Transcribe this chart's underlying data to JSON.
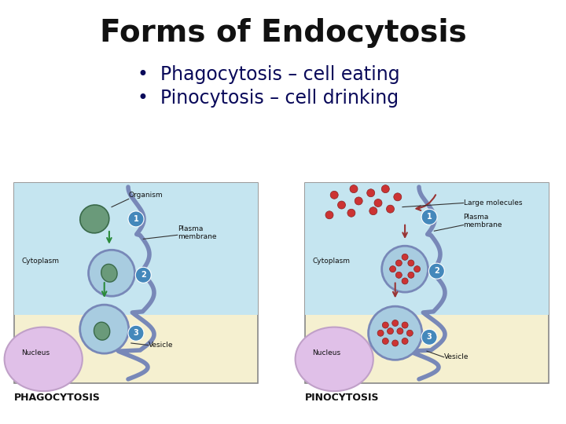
{
  "title": "Forms of Endocytosis",
  "title_color": "#111111",
  "title_fontsize": 28,
  "title_fontweight": "bold",
  "bullet_color": "#0a0a5a",
  "bullet_fontsize": 17,
  "bullet1": "•  Phagocytosis – cell eating",
  "bullet2": "•  Pinocytosis – cell drinking",
  "label1": "PHAGOCYTOSIS",
  "label2": "PINOCYTOSIS",
  "label_fontsize": 9,
  "label_color": "#111111",
  "bg_color": "#ffffff",
  "diagram_bg": "#f5f0d0",
  "cyto_color": "#c5e5f0",
  "nucleus_color": "#e0c0e8",
  "nucleus_edge": "#c0a0c8",
  "membrane_color": "#7888b8",
  "organism_fill": "#6a9a7a",
  "organism_edge": "#3a6a4a",
  "vesicle_fill": "#a8cce0",
  "vesicle_edge": "#7888b8",
  "arrow_phago": "#2a8a3a",
  "arrow_pino": "#993333",
  "step_fill": "#4488bb",
  "step_text": "#ffffff",
  "dot_fill": "#cc3333",
  "dot_edge": "#882222",
  "label_line": "#333333",
  "box_edge": "#888888"
}
